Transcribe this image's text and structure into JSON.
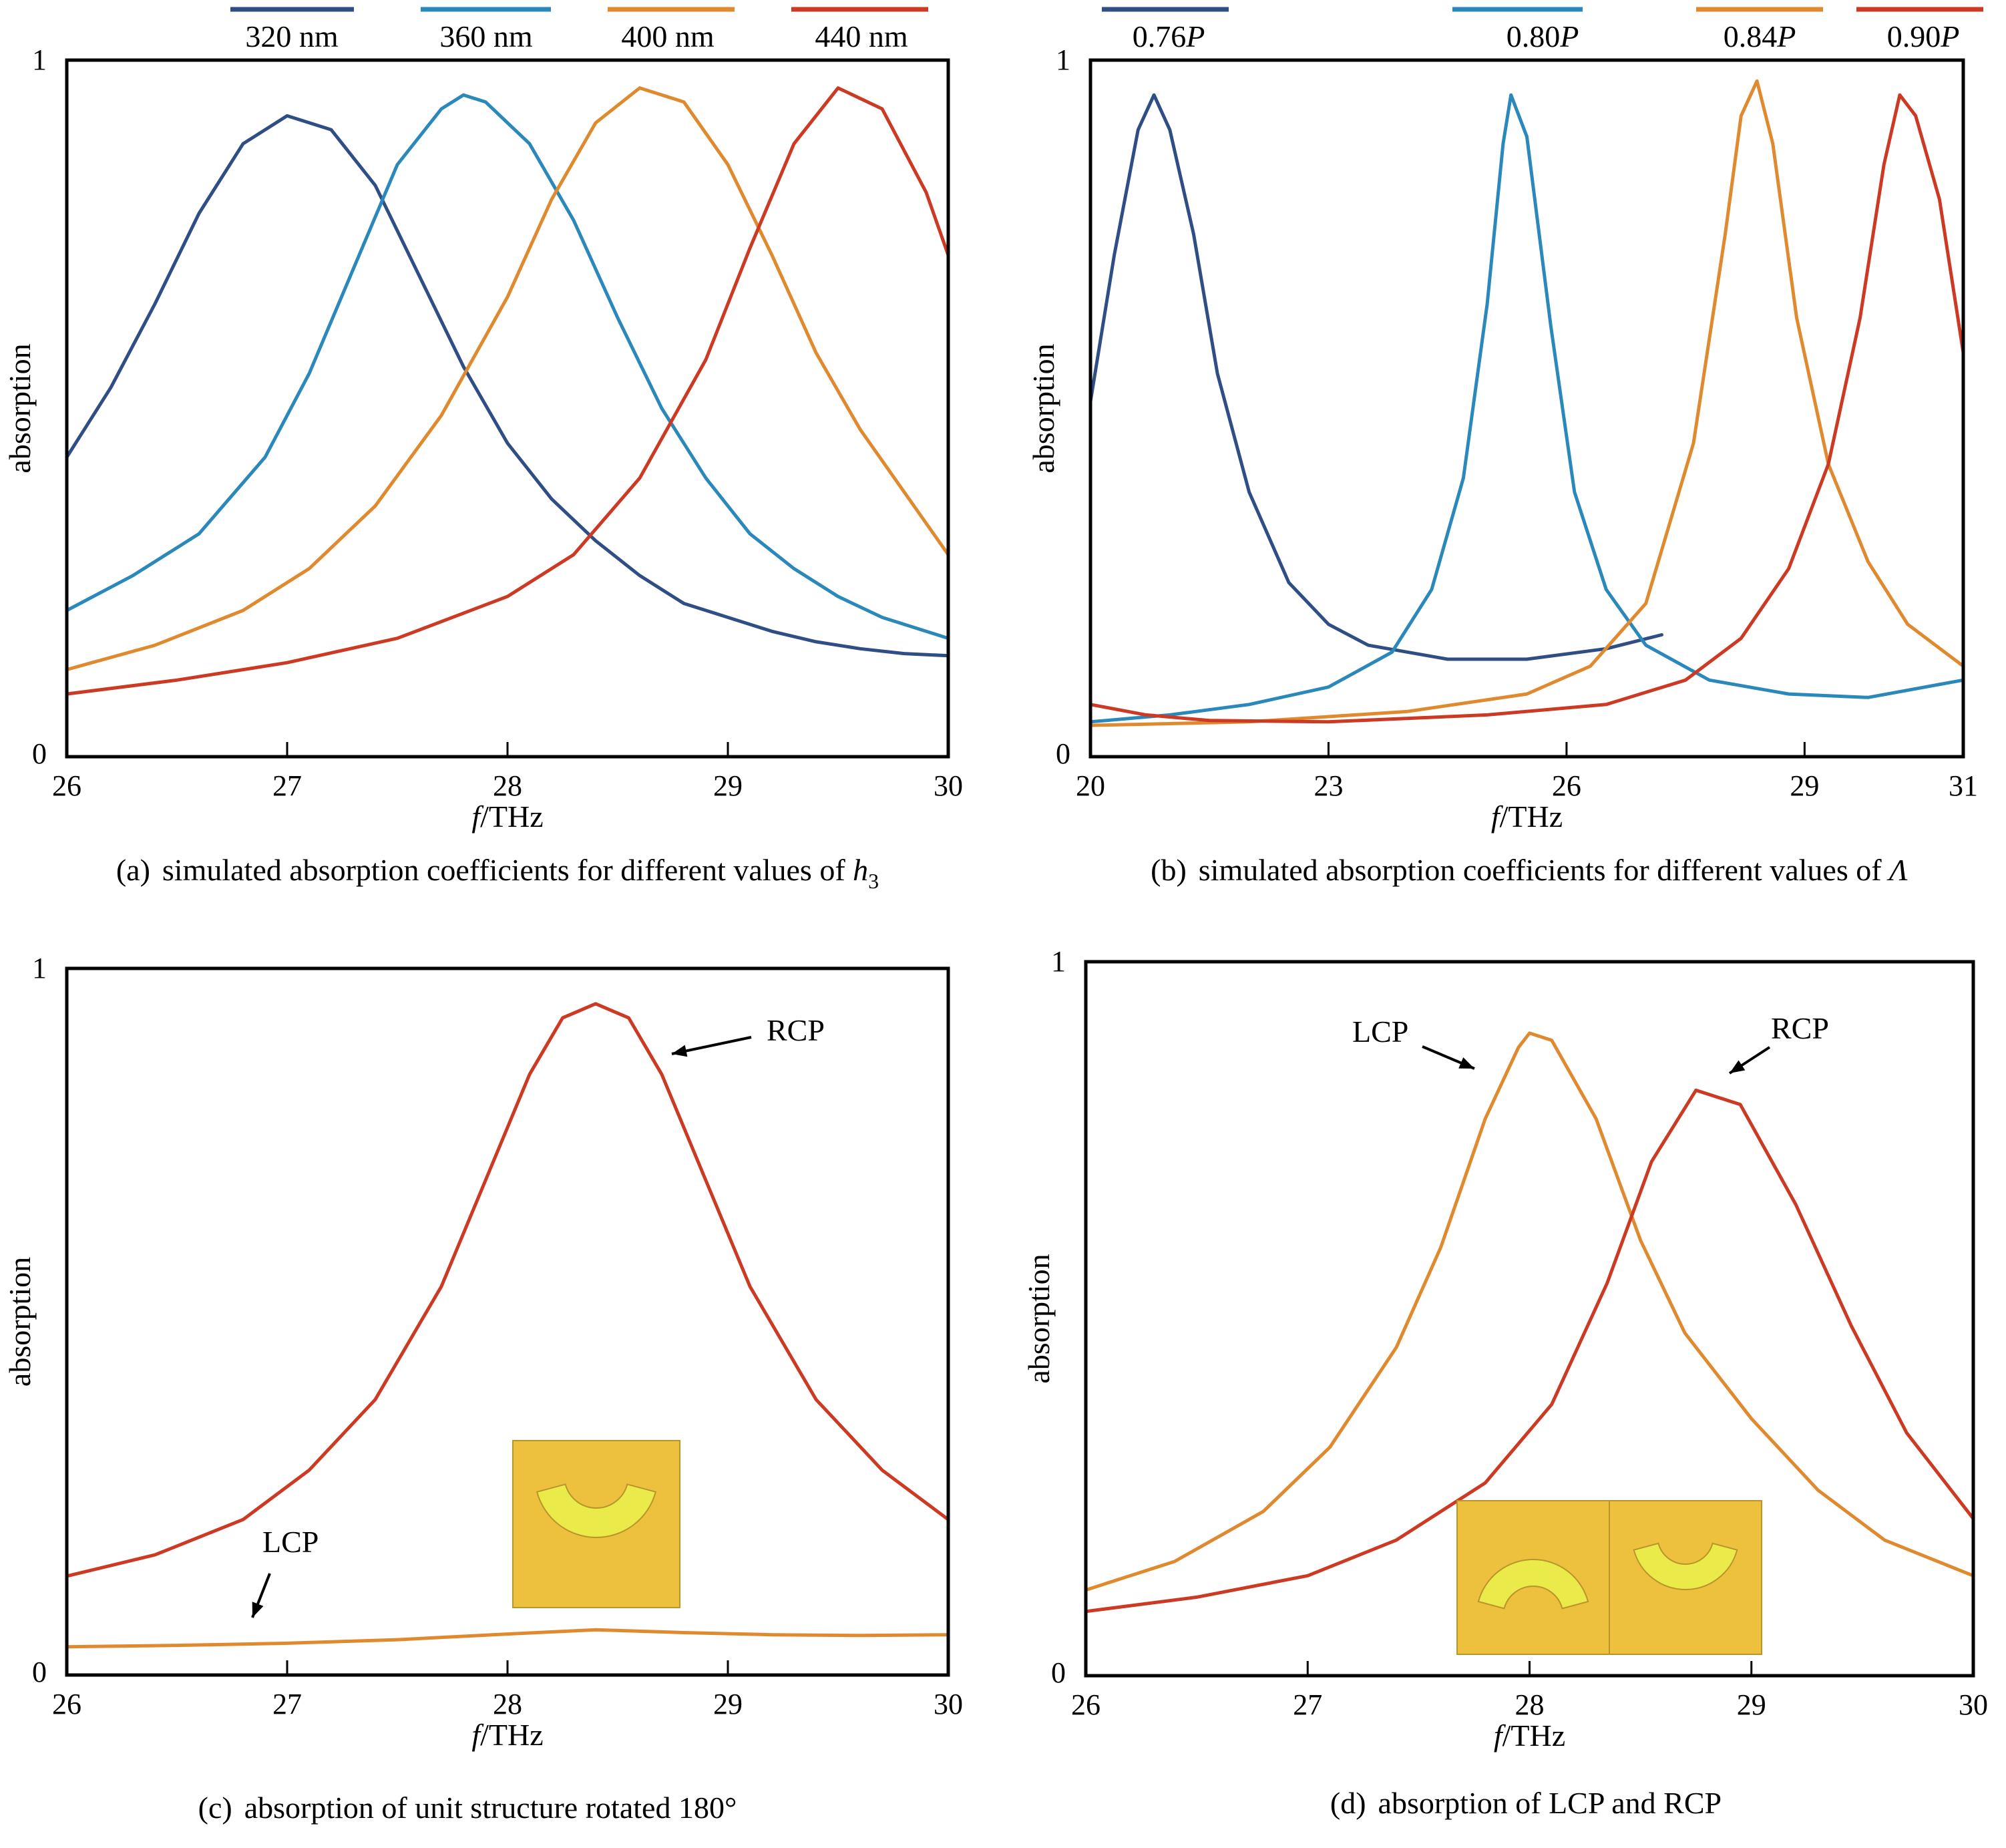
{
  "colors": {
    "dark_blue": "#2f4e86",
    "light_blue": "#2b88bb",
    "orange": "#e08a30",
    "red": "#cc3a23",
    "inset_fill": "#edc03d",
    "inset_shape": "#eaea4a"
  },
  "chart_data": [
    {
      "id": "a",
      "type": "line",
      "caption": {
        "prefix": "(a)",
        "text": "simulated absorption coefficients for different values of ",
        "var": "h",
        "sub": "3"
      },
      "xlabel": {
        "italic": "f",
        "rest": "/THz"
      },
      "ylabel": "absorption",
      "xlim": [
        26,
        30
      ],
      "ylim": [
        0,
        1
      ],
      "xticks": [
        "26",
        "27",
        "28",
        "29",
        "30"
      ],
      "yticks": [
        "0",
        "1"
      ],
      "legend_position": "top",
      "series": [
        {
          "name": "320 nm",
          "color": "dark_blue",
          "points": [
            [
              26.0,
              0.43
            ],
            [
              26.2,
              0.53
            ],
            [
              26.4,
              0.65
            ],
            [
              26.6,
              0.78
            ],
            [
              26.8,
              0.88
            ],
            [
              27.0,
              0.92
            ],
            [
              27.2,
              0.9
            ],
            [
              27.4,
              0.82
            ],
            [
              27.6,
              0.69
            ],
            [
              27.8,
              0.56
            ],
            [
              28.0,
              0.45
            ],
            [
              28.2,
              0.37
            ],
            [
              28.4,
              0.31
            ],
            [
              28.6,
              0.26
            ],
            [
              28.8,
              0.22
            ],
            [
              29.0,
              0.2
            ],
            [
              29.2,
              0.18
            ],
            [
              29.4,
              0.165
            ],
            [
              29.6,
              0.155
            ],
            [
              29.8,
              0.148
            ],
            [
              30.0,
              0.145
            ]
          ]
        },
        {
          "name": "360 nm",
          "color": "light_blue",
          "points": [
            [
              26.0,
              0.21
            ],
            [
              26.3,
              0.26
            ],
            [
              26.6,
              0.32
            ],
            [
              26.9,
              0.43
            ],
            [
              27.1,
              0.55
            ],
            [
              27.3,
              0.7
            ],
            [
              27.5,
              0.85
            ],
            [
              27.7,
              0.93
            ],
            [
              27.8,
              0.95
            ],
            [
              27.9,
              0.94
            ],
            [
              28.1,
              0.88
            ],
            [
              28.3,
              0.77
            ],
            [
              28.5,
              0.63
            ],
            [
              28.7,
              0.5
            ],
            [
              28.9,
              0.4
            ],
            [
              29.1,
              0.32
            ],
            [
              29.3,
              0.27
            ],
            [
              29.5,
              0.23
            ],
            [
              29.7,
              0.2
            ],
            [
              30.0,
              0.17
            ]
          ]
        },
        {
          "name": "400 nm",
          "color": "orange",
          "points": [
            [
              26.0,
              0.125
            ],
            [
              26.4,
              0.16
            ],
            [
              26.8,
              0.21
            ],
            [
              27.1,
              0.27
            ],
            [
              27.4,
              0.36
            ],
            [
              27.7,
              0.49
            ],
            [
              28.0,
              0.66
            ],
            [
              28.2,
              0.8
            ],
            [
              28.4,
              0.91
            ],
            [
              28.6,
              0.96
            ],
            [
              28.8,
              0.94
            ],
            [
              29.0,
              0.85
            ],
            [
              29.2,
              0.72
            ],
            [
              29.4,
              0.58
            ],
            [
              29.6,
              0.47
            ],
            [
              29.8,
              0.38
            ],
            [
              30.0,
              0.29
            ]
          ]
        },
        {
          "name": "440 nm",
          "color": "red",
          "points": [
            [
              26.0,
              0.09
            ],
            [
              26.5,
              0.11
            ],
            [
              27.0,
              0.135
            ],
            [
              27.5,
              0.17
            ],
            [
              28.0,
              0.23
            ],
            [
              28.3,
              0.29
            ],
            [
              28.6,
              0.4
            ],
            [
              28.9,
              0.57
            ],
            [
              29.1,
              0.73
            ],
            [
              29.3,
              0.88
            ],
            [
              29.5,
              0.96
            ],
            [
              29.7,
              0.93
            ],
            [
              29.9,
              0.81
            ],
            [
              30.0,
              0.72
            ]
          ]
        }
      ]
    },
    {
      "id": "b",
      "type": "line",
      "caption": {
        "prefix": "(b)",
        "text": "simulated absorption coefficients for different values of ",
        "var": "Λ",
        "sub": ""
      },
      "xlabel": {
        "italic": "f",
        "rest": "/THz"
      },
      "ylabel": "absorption",
      "xlim": [
        20,
        31
      ],
      "ylim": [
        0,
        1
      ],
      "xticks": [
        "20",
        "23",
        "26",
        "29",
        "31"
      ],
      "xtick_values": [
        20,
        23,
        26,
        29,
        31
      ],
      "yticks": [
        "0",
        "1"
      ],
      "legend_position": "top",
      "series": [
        {
          "name": "0.76P",
          "name_num": "0.76",
          "name_var": "P",
          "color": "dark_blue",
          "points": [
            [
              20.0,
              0.51
            ],
            [
              20.3,
              0.72
            ],
            [
              20.6,
              0.9
            ],
            [
              20.8,
              0.95
            ],
            [
              21.0,
              0.9
            ],
            [
              21.3,
              0.75
            ],
            [
              21.6,
              0.55
            ],
            [
              22.0,
              0.38
            ],
            [
              22.5,
              0.25
            ],
            [
              23.0,
              0.19
            ],
            [
              23.5,
              0.16
            ],
            [
              24.5,
              0.14
            ],
            [
              25.5,
              0.14
            ],
            [
              26.5,
              0.155
            ],
            [
              27.2,
              0.175
            ]
          ]
        },
        {
          "name": "0.80P",
          "name_num": "0.80",
          "name_var": "P",
          "color": "light_blue",
          "points": [
            [
              20.0,
              0.05
            ],
            [
              21.0,
              0.06
            ],
            [
              22.0,
              0.075
            ],
            [
              23.0,
              0.1
            ],
            [
              23.8,
              0.15
            ],
            [
              24.3,
              0.24
            ],
            [
              24.7,
              0.4
            ],
            [
              25.0,
              0.65
            ],
            [
              25.2,
              0.88
            ],
            [
              25.3,
              0.95
            ],
            [
              25.5,
              0.89
            ],
            [
              25.8,
              0.62
            ],
            [
              26.1,
              0.38
            ],
            [
              26.5,
              0.24
            ],
            [
              27.0,
              0.16
            ],
            [
              27.8,
              0.11
            ],
            [
              28.8,
              0.09
            ],
            [
              29.8,
              0.085
            ],
            [
              31.0,
              0.11
            ]
          ]
        },
        {
          "name": "0.84P",
          "name_num": "0.84",
          "name_var": "P",
          "color": "orange",
          "points": [
            [
              20.0,
              0.045
            ],
            [
              22.0,
              0.05
            ],
            [
              24.0,
              0.065
            ],
            [
              25.5,
              0.09
            ],
            [
              26.3,
              0.13
            ],
            [
              27.0,
              0.22
            ],
            [
              27.6,
              0.45
            ],
            [
              28.0,
              0.75
            ],
            [
              28.2,
              0.92
            ],
            [
              28.4,
              0.97
            ],
            [
              28.6,
              0.88
            ],
            [
              28.9,
              0.63
            ],
            [
              29.3,
              0.42
            ],
            [
              29.8,
              0.28
            ],
            [
              30.3,
              0.19
            ],
            [
              31.0,
              0.13
            ]
          ]
        },
        {
          "name": "0.90P",
          "name_num": "0.90",
          "name_var": "P",
          "color": "red",
          "points": [
            [
              20.0,
              0.075
            ],
            [
              20.7,
              0.06
            ],
            [
              21.5,
              0.052
            ],
            [
              23.0,
              0.05
            ],
            [
              25.0,
              0.06
            ],
            [
              26.5,
              0.075
            ],
            [
              27.5,
              0.11
            ],
            [
              28.2,
              0.17
            ],
            [
              28.8,
              0.27
            ],
            [
              29.3,
              0.42
            ],
            [
              29.7,
              0.63
            ],
            [
              30.0,
              0.85
            ],
            [
              30.2,
              0.95
            ],
            [
              30.4,
              0.92
            ],
            [
              30.7,
              0.8
            ],
            [
              31.0,
              0.58
            ]
          ]
        }
      ]
    },
    {
      "id": "c",
      "type": "line",
      "caption": {
        "prefix": "(c)",
        "text": "absorption of unit structure rotated 180°"
      },
      "xlabel": {
        "italic": "f",
        "rest": "/THz"
      },
      "ylabel": "absorption",
      "xlim": [
        26,
        30
      ],
      "ylim": [
        0,
        1
      ],
      "xticks": [
        "26",
        "27",
        "28",
        "29",
        "30"
      ],
      "yticks": [
        "0",
        "1"
      ],
      "annotations": [
        "RCP",
        "LCP"
      ],
      "series": [
        {
          "name": "RCP",
          "color": "red",
          "points": [
            [
              26.0,
              0.14
            ],
            [
              26.4,
              0.17
            ],
            [
              26.8,
              0.22
            ],
            [
              27.1,
              0.29
            ],
            [
              27.4,
              0.39
            ],
            [
              27.7,
              0.55
            ],
            [
              27.9,
              0.7
            ],
            [
              28.1,
              0.85
            ],
            [
              28.25,
              0.93
            ],
            [
              28.4,
              0.95
            ],
            [
              28.55,
              0.93
            ],
            [
              28.7,
              0.85
            ],
            [
              28.9,
              0.7
            ],
            [
              29.1,
              0.55
            ],
            [
              29.4,
              0.39
            ],
            [
              29.7,
              0.29
            ],
            [
              30.0,
              0.22
            ]
          ]
        },
        {
          "name": "LCP",
          "color": "orange",
          "points": [
            [
              26.0,
              0.04
            ],
            [
              26.5,
              0.042
            ],
            [
              27.0,
              0.045
            ],
            [
              27.5,
              0.05
            ],
            [
              28.0,
              0.058
            ],
            [
              28.4,
              0.064
            ],
            [
              28.8,
              0.06
            ],
            [
              29.2,
              0.057
            ],
            [
              29.6,
              0.056
            ],
            [
              30.0,
              0.057
            ]
          ]
        }
      ]
    },
    {
      "id": "d",
      "type": "line",
      "caption": {
        "prefix": "(d)",
        "text": "absorption of LCP and RCP"
      },
      "xlabel": {
        "italic": "f",
        "rest": "/THz"
      },
      "ylabel": "absorption",
      "xlim": [
        26,
        30
      ],
      "ylim": [
        0,
        1
      ],
      "xticks": [
        "26",
        "27",
        "28",
        "29",
        "30"
      ],
      "yticks": [
        "0",
        "1"
      ],
      "annotations": [
        "LCP",
        "RCP"
      ],
      "series": [
        {
          "name": "LCP",
          "color": "orange",
          "points": [
            [
              26.0,
              0.12
            ],
            [
              26.4,
              0.16
            ],
            [
              26.8,
              0.23
            ],
            [
              27.1,
              0.32
            ],
            [
              27.4,
              0.46
            ],
            [
              27.6,
              0.6
            ],
            [
              27.8,
              0.78
            ],
            [
              27.95,
              0.88
            ],
            [
              28.0,
              0.9
            ],
            [
              28.1,
              0.89
            ],
            [
              28.3,
              0.78
            ],
            [
              28.5,
              0.61
            ],
            [
              28.7,
              0.48
            ],
            [
              29.0,
              0.36
            ],
            [
              29.3,
              0.26
            ],
            [
              29.6,
              0.19
            ],
            [
              30.0,
              0.14
            ]
          ]
        },
        {
          "name": "RCP",
          "color": "red",
          "points": [
            [
              26.0,
              0.09
            ],
            [
              26.5,
              0.11
            ],
            [
              27.0,
              0.14
            ],
            [
              27.4,
              0.19
            ],
            [
              27.8,
              0.27
            ],
            [
              28.1,
              0.38
            ],
            [
              28.35,
              0.55
            ],
            [
              28.55,
              0.72
            ],
            [
              28.75,
              0.82
            ],
            [
              28.95,
              0.8
            ],
            [
              29.2,
              0.66
            ],
            [
              29.45,
              0.49
            ],
            [
              29.7,
              0.34
            ],
            [
              30.0,
              0.22
            ]
          ]
        }
      ]
    }
  ]
}
